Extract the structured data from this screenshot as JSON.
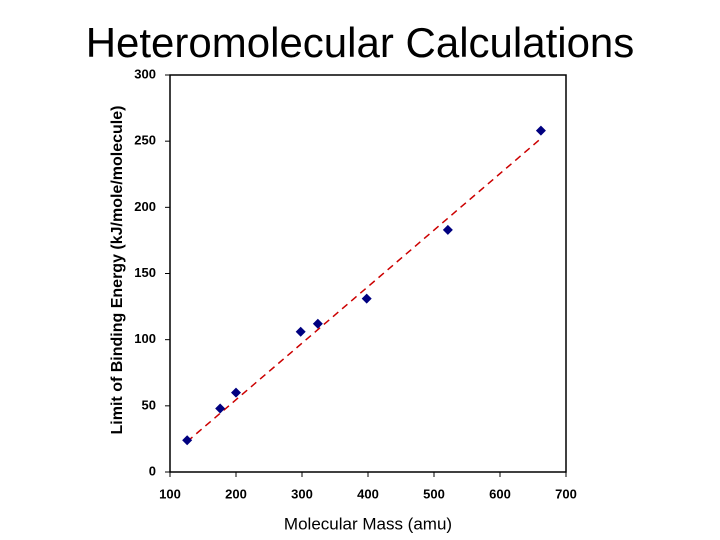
{
  "chart_data": {
    "type": "scatter",
    "title": "Heteromolecular Calculations",
    "x_label": "Molecular Mass (amu)",
    "y_label": "Limit of Binding Energy (kJ/mole/molecule)",
    "series": [
      {
        "x": [
          126,
          176,
          200,
          298,
          324,
          398,
          521,
          662
        ],
        "values": [
          24,
          48,
          60,
          106,
          112,
          131,
          183,
          258
        ],
        "color": "#000080"
      }
    ],
    "trendline": {
      "x": [
        126,
        662
      ],
      "values": [
        23,
        252
      ],
      "color": "#cc0000"
    },
    "xlim": [
      100,
      700
    ],
    "xticks": [
      100,
      200,
      300,
      400,
      500,
      600,
      700
    ],
    "ylim": [
      0,
      300
    ],
    "yticks": [
      0,
      50,
      100,
      150,
      200,
      250,
      300
    ],
    "title_color": "#5a0f3c"
  }
}
